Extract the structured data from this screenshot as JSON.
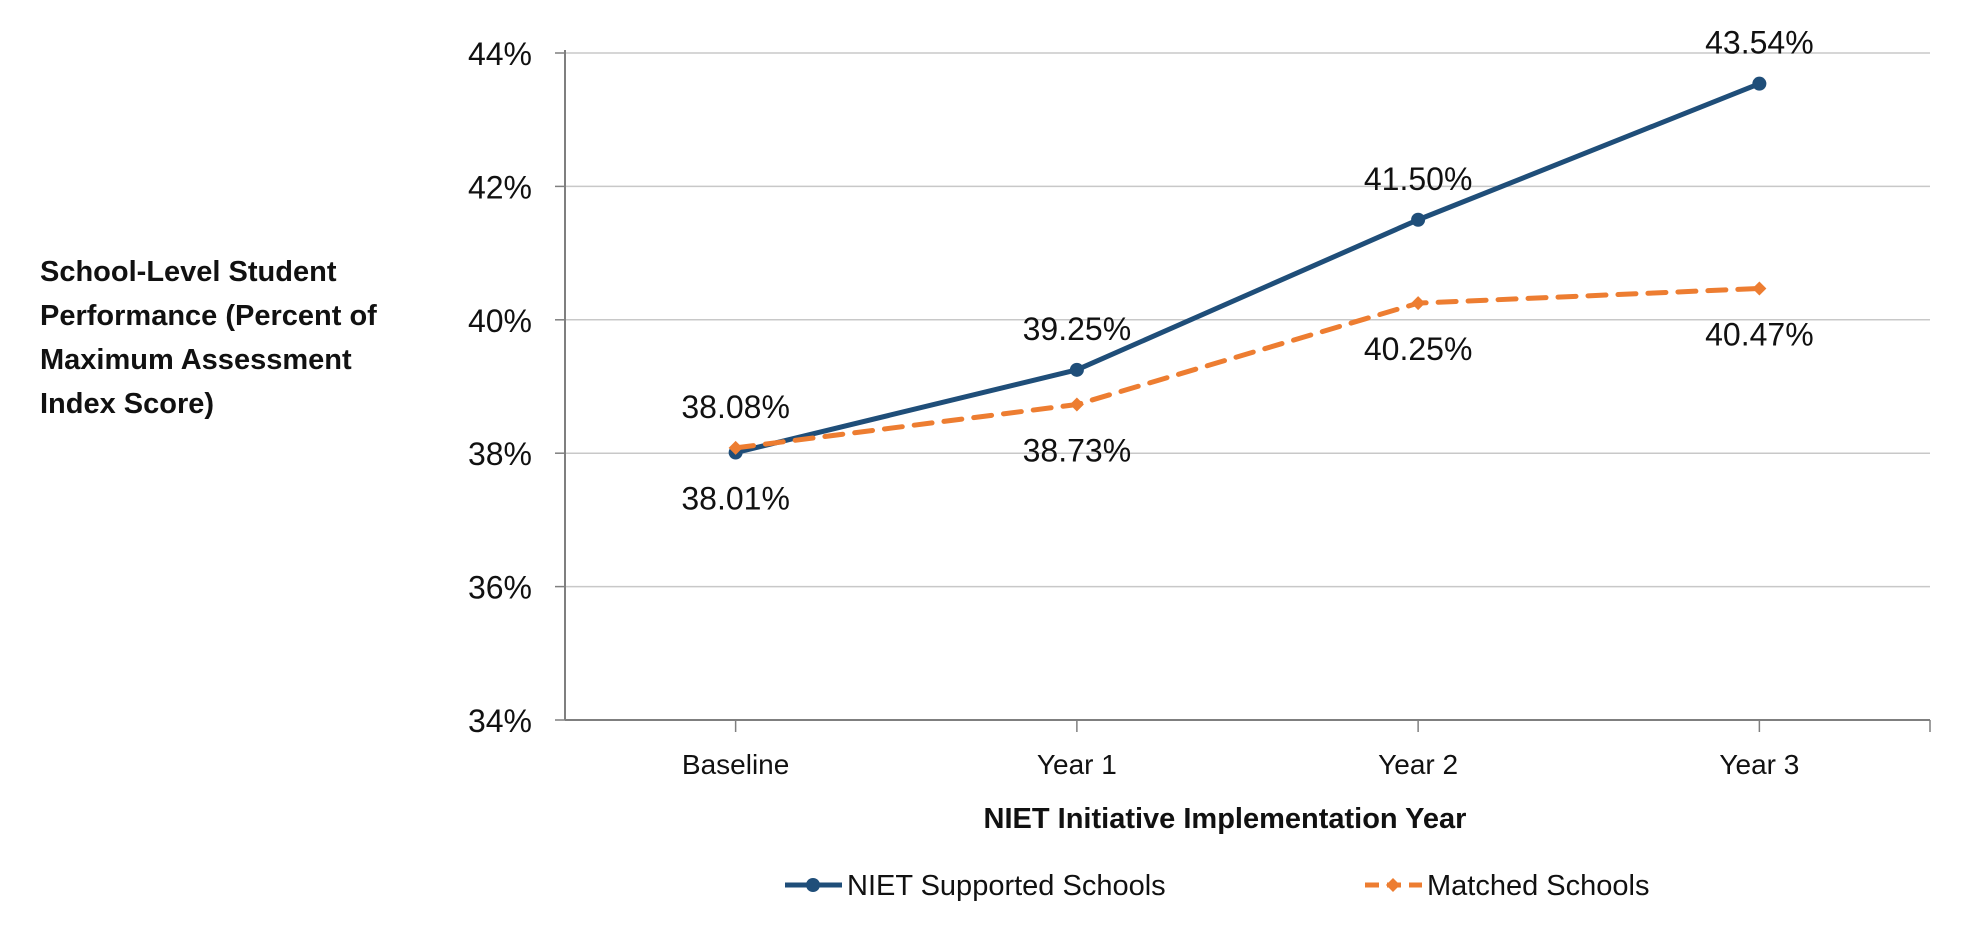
{
  "chart_data": {
    "type": "line",
    "title": "",
    "xlabel": "NIET Initiative Implementation Year",
    "ylabel_lines": [
      "School-Level Student",
      "Performance (Percent of",
      "Maximum Assessment",
      "Index Score)"
    ],
    "categories": [
      "Baseline",
      "Year 1",
      "Year 2",
      "Year 3"
    ],
    "ylim": [
      34,
      44
    ],
    "yticks": [
      34,
      36,
      38,
      40,
      42,
      44
    ],
    "ytick_labels": [
      "34%",
      "36%",
      "38%",
      "40%",
      "42%",
      "44%"
    ],
    "grid": true,
    "legend_position": "bottom",
    "series": [
      {
        "name": "NIET Supported Schools",
        "values": [
          38.01,
          39.25,
          41.5,
          43.54
        ],
        "labels": [
          "38.01%",
          "39.25%",
          "41.50%",
          "43.54%"
        ],
        "color": "#1F4E79",
        "dash": "solid",
        "marker": "circle"
      },
      {
        "name": "Matched Schools",
        "values": [
          38.08,
          38.73,
          40.25,
          40.47
        ],
        "labels": [
          "38.08%",
          "38.73%",
          "40.25%",
          "40.47%"
        ],
        "color": "#ED7D31",
        "dash": "dashed",
        "marker": "diamond"
      }
    ]
  }
}
